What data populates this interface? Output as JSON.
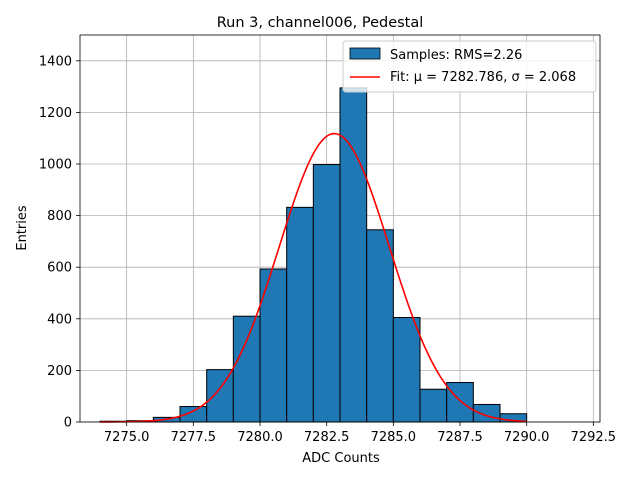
{
  "chart_data": {
    "type": "bar",
    "title": "Run 3, channel006, Pedestal",
    "xlabel": "ADC Counts",
    "ylabel": "Entries",
    "xlim": [
      7273.25,
      7292.75
    ],
    "ylim": [
      0,
      1500
    ],
    "xticks": [
      7275.0,
      7277.5,
      7280.0,
      7282.5,
      7285.0,
      7287.5,
      7290.0,
      7292.5
    ],
    "xtick_labels": [
      "7275.0",
      "7277.5",
      "7280.0",
      "7282.5",
      "7285.0",
      "7287.5",
      "7290.0",
      "7292.5"
    ],
    "yticks": [
      0,
      200,
      400,
      600,
      800,
      1000,
      1200,
      1400
    ],
    "ytick_labels": [
      "0",
      "200",
      "400",
      "600",
      "800",
      "1000",
      "1200",
      "1400"
    ],
    "grid": true,
    "legend_position": "top-right",
    "bar_color": "#1f77b4",
    "fit_color": "#ff0000",
    "bins": {
      "edges": [
        7274,
        7275,
        7276,
        7277,
        7278,
        7279,
        7280,
        7281,
        7282,
        7283,
        7284,
        7285,
        7286,
        7287,
        7288,
        7289,
        7290
      ],
      "counts": [
        3,
        5,
        18,
        60,
        203,
        410,
        593,
        832,
        998,
        1295,
        745,
        405,
        127,
        153,
        68,
        32
      ]
    },
    "fit": {
      "mu": 7282.786,
      "sigma": 2.068,
      "amplitude": 1118,
      "x_range": [
        7274,
        7290
      ]
    },
    "legend": [
      {
        "key": "samples",
        "label": "Samples: RMS=2.26"
      },
      {
        "key": "fit",
        "label": "Fit: μ = 7282.786, σ = 2.068"
      }
    ]
  }
}
